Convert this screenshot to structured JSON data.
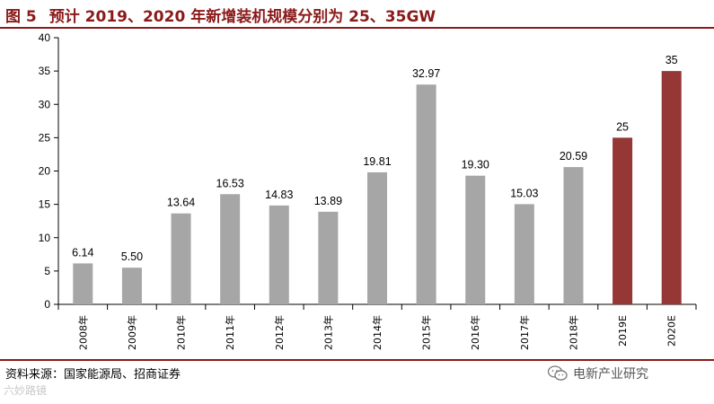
{
  "title": {
    "figure_number": "图 5",
    "text": "预计 2019、2020 年新增装机规模分别为 25、35GW"
  },
  "source": "资料来源：国家能源局、招商证券",
  "watermark_left": "六妙路镜",
  "watermark_right": "电新产业研究",
  "colors": {
    "title": "#8B1A1A",
    "bar_actual": "#A6A6A6",
    "bar_forecast": "#953735"
  },
  "chart_data": {
    "type": "bar",
    "categories": [
      "2008年",
      "2009年",
      "2010年",
      "2011年",
      "2012年",
      "2013年",
      "2014年",
      "2015年",
      "2016年",
      "2017年",
      "2018年",
      "2019E",
      "2020E"
    ],
    "values": [
      6.14,
      5.5,
      13.64,
      16.53,
      14.83,
      13.89,
      19.81,
      32.97,
      19.3,
      15.03,
      20.59,
      25,
      35
    ],
    "labels": [
      "6.14",
      "5.50",
      "13.64",
      "16.53",
      "14.83",
      "13.89",
      "19.81",
      "32.97",
      "19.30",
      "15.03",
      "20.59",
      "25",
      "35"
    ],
    "forecast": [
      false,
      false,
      false,
      false,
      false,
      false,
      false,
      false,
      false,
      false,
      false,
      true,
      true
    ],
    "ylim": [
      0,
      40
    ],
    "yticks": [
      0,
      5,
      10,
      15,
      20,
      25,
      30,
      35,
      40
    ],
    "grid": false,
    "legend": "none"
  }
}
